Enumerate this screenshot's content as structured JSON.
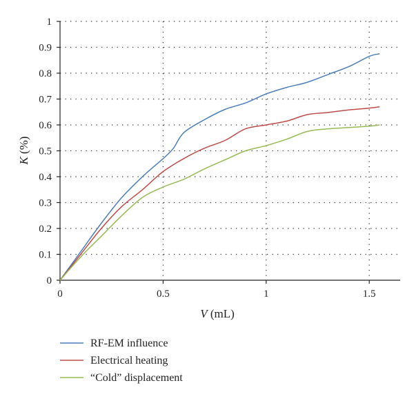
{
  "chart_data": {
    "type": "line",
    "title": "",
    "xlabel": {
      "symbol": "V",
      "unit": " (mL)"
    },
    "ylabel": {
      "symbol": "K",
      "unit": " (%)"
    },
    "xlim": [
      0,
      1.65
    ],
    "ylim": [
      0,
      1
    ],
    "x_ticks": [
      0,
      0.5,
      1,
      1.5
    ],
    "x_tick_labels": [
      "0",
      "0.5",
      "1",
      "1.5"
    ],
    "y_ticks": [
      0,
      0.1,
      0.2,
      0.3,
      0.4,
      0.5,
      0.6,
      0.7,
      0.8,
      0.9,
      1
    ],
    "y_tick_labels": [
      "0",
      "0.1",
      "0.2",
      "0.3",
      "0.4",
      "0.5",
      "0.6",
      "0.7",
      "0.8",
      "0.9",
      "1"
    ],
    "grid": "dotted",
    "legend_position": "bottom-left",
    "series": [
      {
        "name": "RF-EM influence",
        "color": "#4a7ebb",
        "x": [
          0,
          0.1,
          0.2,
          0.3,
          0.4,
          0.5,
          0.55,
          0.6,
          0.7,
          0.8,
          0.9,
          1.0,
          1.1,
          1.2,
          1.3,
          1.4,
          1.5,
          1.55
        ],
        "y": [
          0,
          0.11,
          0.22,
          0.32,
          0.4,
          0.47,
          0.51,
          0.57,
          0.62,
          0.66,
          0.685,
          0.72,
          0.745,
          0.765,
          0.795,
          0.825,
          0.865,
          0.875
        ]
      },
      {
        "name": "Electrical heating",
        "color": "#be4b48",
        "x": [
          0,
          0.1,
          0.2,
          0.3,
          0.4,
          0.5,
          0.6,
          0.7,
          0.8,
          0.9,
          1.0,
          1.1,
          1.2,
          1.3,
          1.4,
          1.5,
          1.55
        ],
        "y": [
          0,
          0.1,
          0.2,
          0.285,
          0.35,
          0.42,
          0.47,
          0.51,
          0.54,
          0.585,
          0.6,
          0.615,
          0.64,
          0.648,
          0.658,
          0.665,
          0.67
        ]
      },
      {
        "name": "“Cold” displacement",
        "color": "#98b954",
        "x": [
          0,
          0.1,
          0.2,
          0.3,
          0.4,
          0.5,
          0.6,
          0.7,
          0.8,
          0.9,
          1.0,
          1.1,
          1.2,
          1.3,
          1.4,
          1.5,
          1.55
        ],
        "y": [
          0,
          0.09,
          0.17,
          0.25,
          0.32,
          0.36,
          0.39,
          0.43,
          0.465,
          0.5,
          0.52,
          0.545,
          0.575,
          0.585,
          0.59,
          0.595,
          0.6
        ]
      }
    ]
  }
}
